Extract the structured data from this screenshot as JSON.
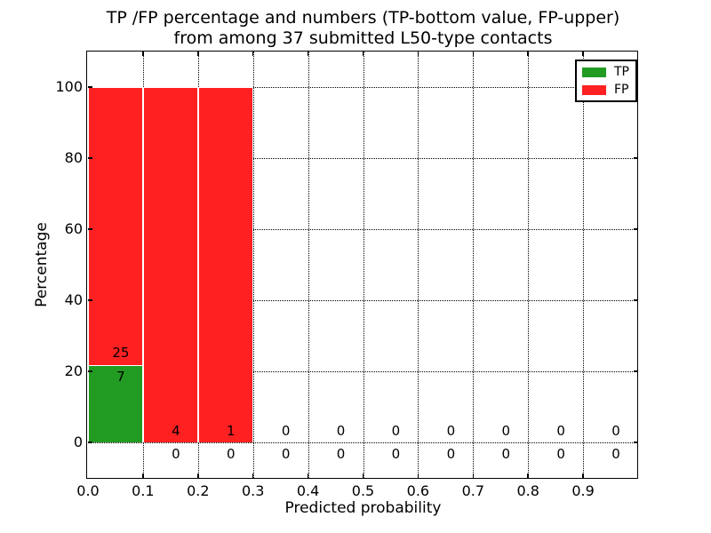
{
  "chart_data": {
    "type": "bar",
    "stacked": true,
    "title_lines": [
      "TP /FP percentage and numbers (TP-bottom value, FP-upper)",
      "from among 37 submitted L50-type contacts"
    ],
    "xlabel": "Predicted probability",
    "ylabel": "Percentage",
    "x_tick_labels": [
      "0.0",
      "0.1",
      "0.2",
      "0.3",
      "0.4",
      "0.5",
      "0.6",
      "0.7",
      "0.8",
      "0.9"
    ],
    "x_tick_values": [
      0,
      0.1,
      0.2,
      0.3,
      0.4,
      0.5,
      0.6,
      0.7,
      0.8,
      0.9
    ],
    "y_tick_labels": [
      "0",
      "20",
      "40",
      "60",
      "80",
      "100"
    ],
    "y_tick_values": [
      0,
      20,
      40,
      60,
      80,
      100
    ],
    "xlim": [
      0,
      1.0
    ],
    "ylim": [
      -10,
      110
    ],
    "grid": "dotted",
    "bin_width": 0.1,
    "bin_starts": [
      0,
      0.1,
      0.2,
      0.3,
      0.4,
      0.5,
      0.6,
      0.7,
      0.8,
      0.9
    ],
    "total_contacts": 37,
    "series": [
      {
        "name": "TP",
        "color": "#229b22",
        "counts": [
          7,
          0,
          0,
          0,
          0,
          0,
          0,
          0,
          0,
          0
        ],
        "pct": [
          21.875,
          0,
          0,
          0,
          0,
          0,
          0,
          0,
          0,
          0
        ]
      },
      {
        "name": "FP",
        "color": "#ff2121",
        "counts": [
          25,
          4,
          1,
          0,
          0,
          0,
          0,
          0,
          0,
          0
        ],
        "pct": [
          78.125,
          100,
          100,
          0,
          0,
          0,
          0,
          0,
          0,
          0
        ]
      }
    ],
    "legend": {
      "position": "upper right",
      "items": [
        "TP",
        "FP"
      ]
    }
  }
}
